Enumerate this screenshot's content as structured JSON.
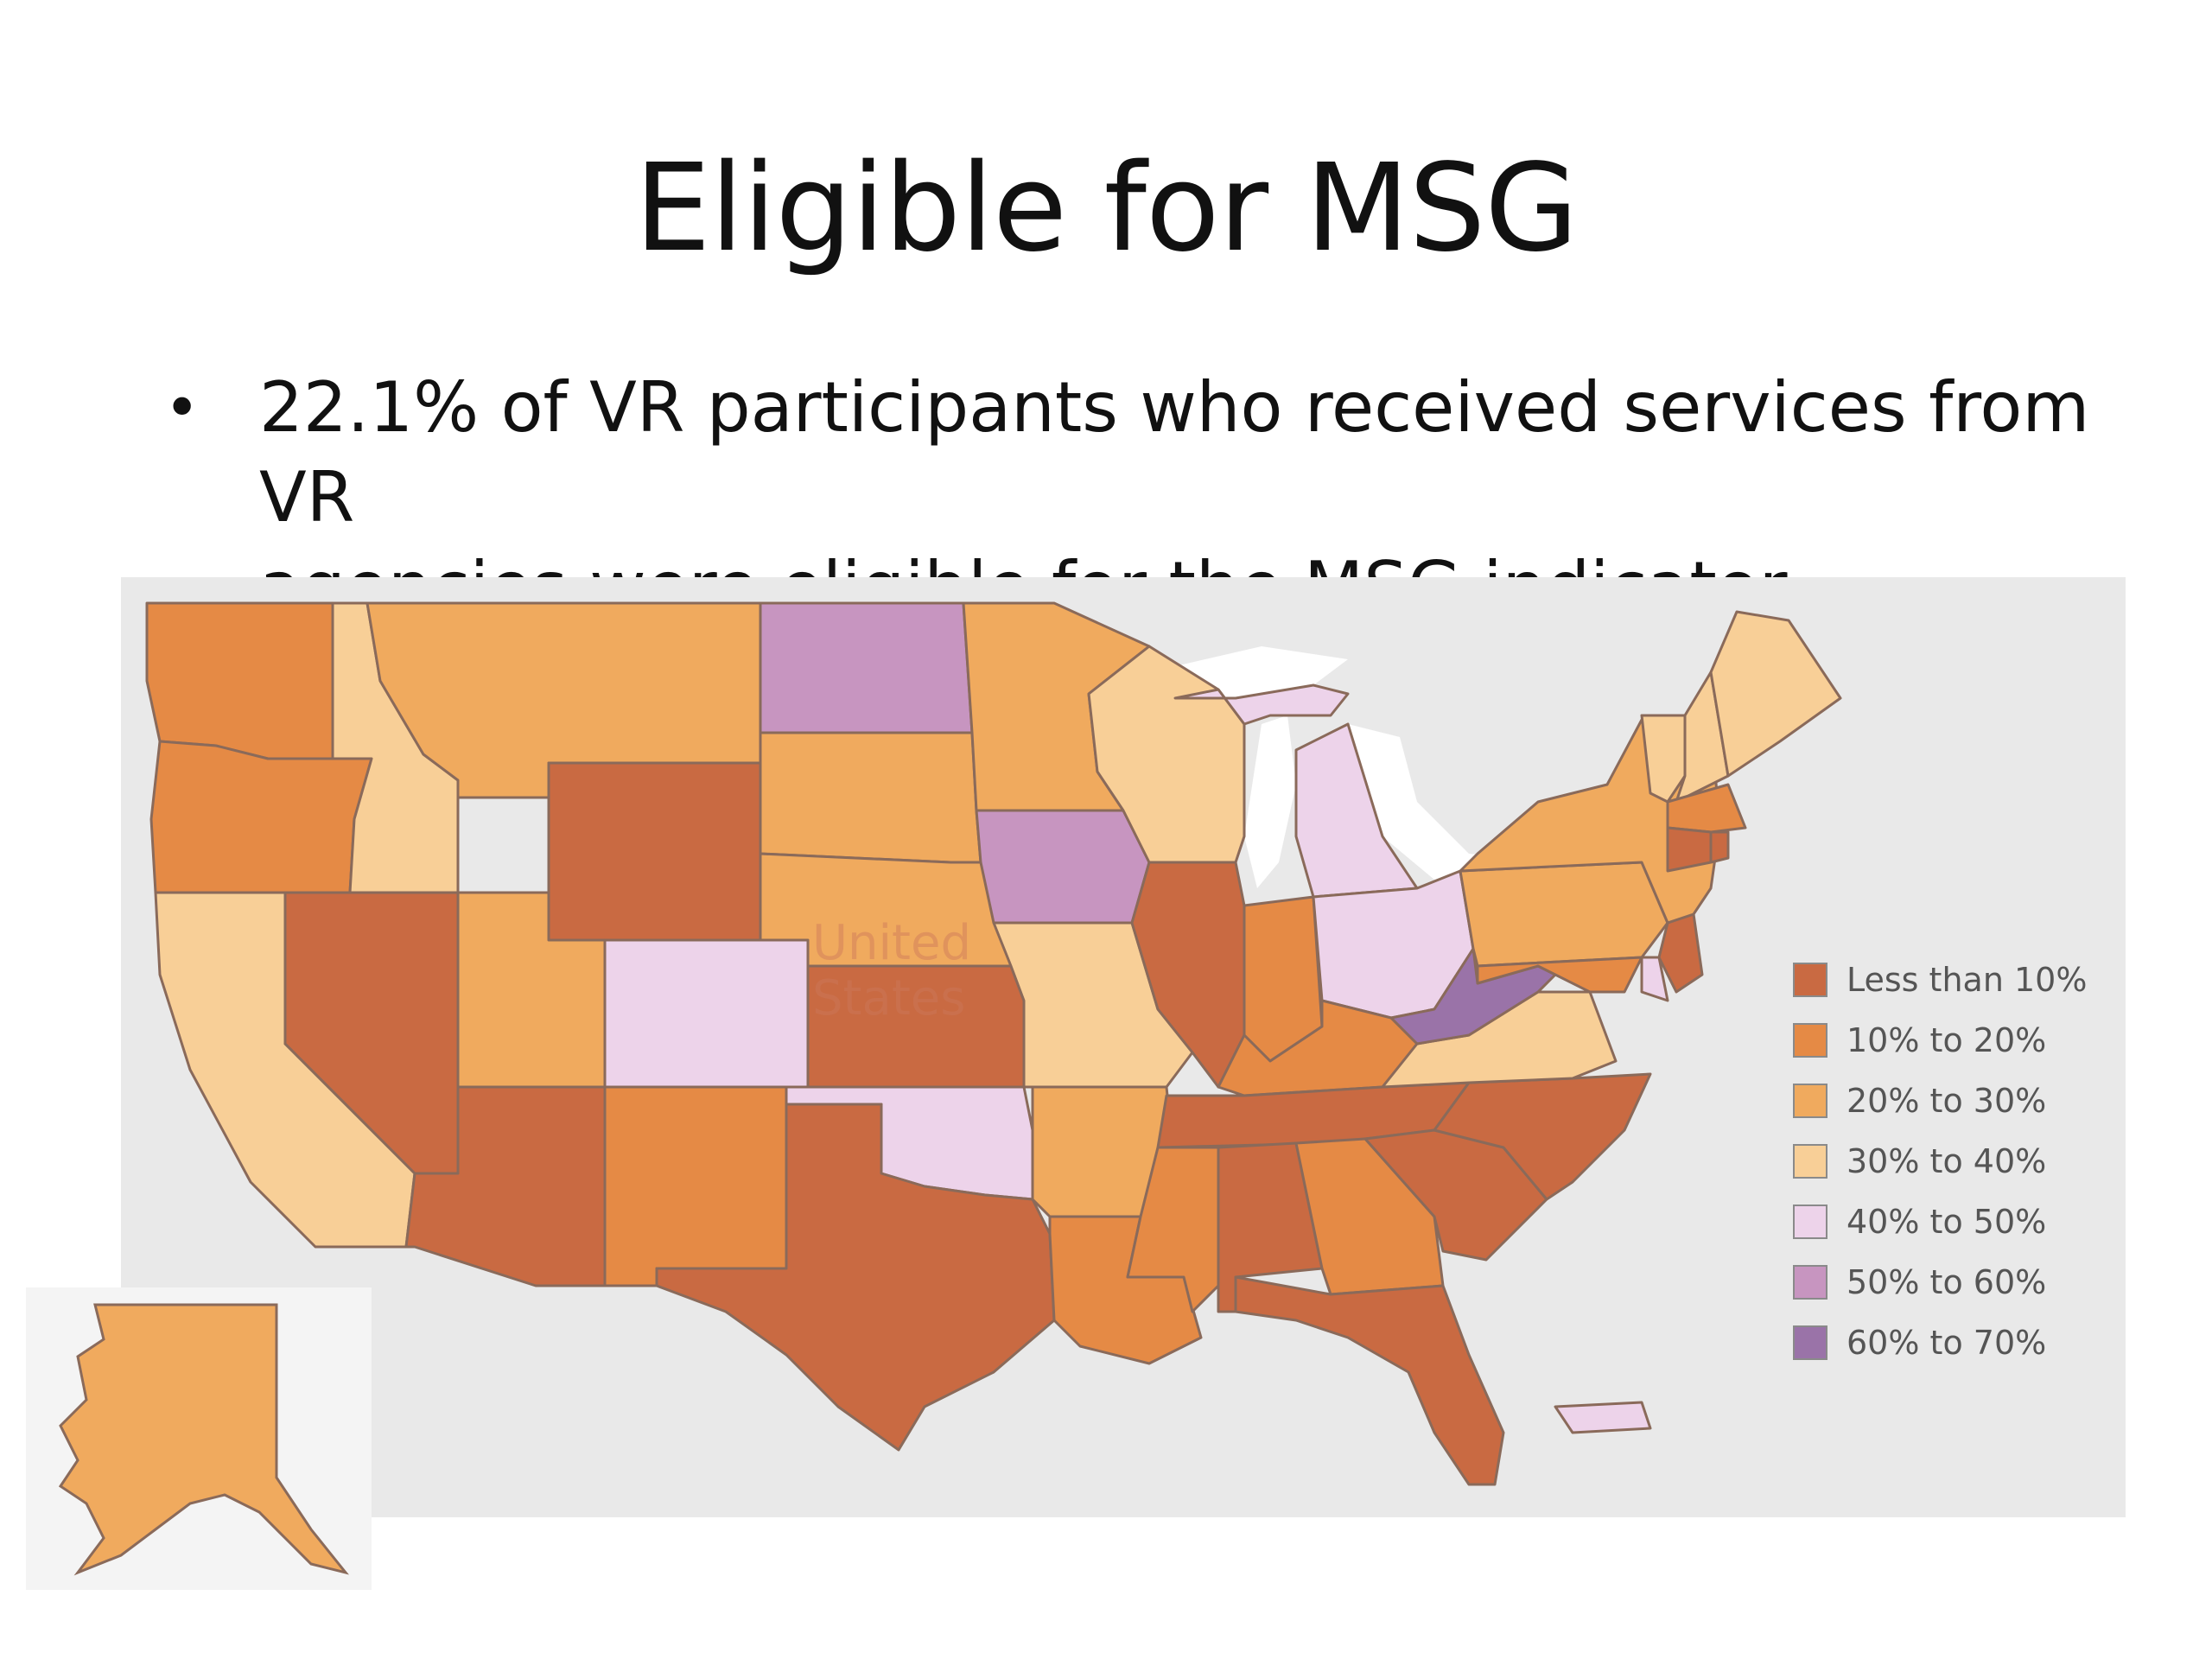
{
  "slide": {
    "title": "Eligible for MSG",
    "bullet": "22.1% of VR participants who received services from VR agencies were eligible for the MSG indicator",
    "bullet_line1": "22.1% of VR participants who received services from VR",
    "bullet_line2": "agencies were eligible for the MSG indicator"
  },
  "map": {
    "country_label_line1": "United",
    "country_label_line2": "States",
    "legend": [
      {
        "label": "Less than 10%",
        "color": "#c96a42"
      },
      {
        "label": "10% to 20%",
        "color": "#e58a45"
      },
      {
        "label": "20% to 30%",
        "color": "#f0aa5e"
      },
      {
        "label": "30% to 40%",
        "color": "#f8cf97"
      },
      {
        "label": "40% to 50%",
        "color": "#edd3ea"
      },
      {
        "label": "50% to 60%",
        "color": "#c795c0"
      },
      {
        "label": "60% to 70%",
        "color": "#9a73a8"
      }
    ],
    "colors": {
      "water": "#ffffff",
      "land_background": "#e9e9e9",
      "state_border": "#8a6a5a"
    }
  }
}
